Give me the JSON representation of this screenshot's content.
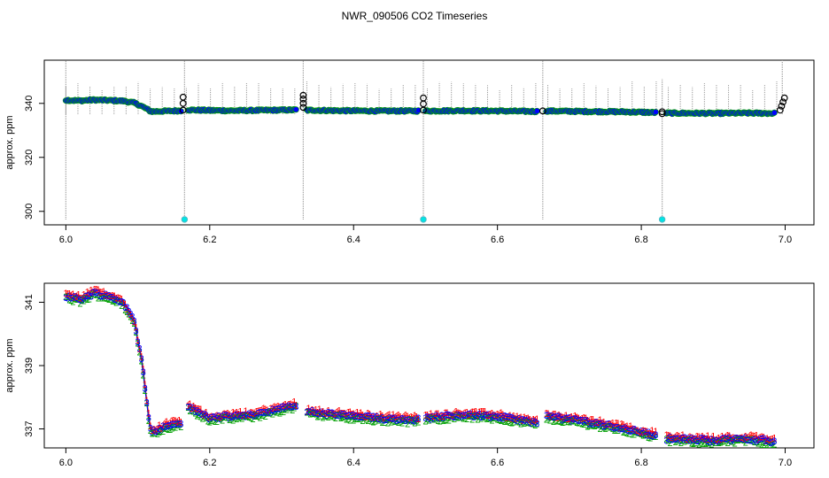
{
  "title": "NWR_090506  CO2 Timeseries",
  "chart_data": [
    {
      "type": "scatter",
      "panel": "top",
      "title": "NWR_090506  CO2 Timeseries",
      "xlabel": "",
      "ylabel": "approx. ppm",
      "xlim": [
        5.97,
        7.04
      ],
      "ylim": [
        295,
        356
      ],
      "xticks": [
        6.0,
        6.2,
        6.4,
        6.6,
        6.8,
        7.0
      ],
      "xtick_labels": [
        "6.0",
        "6.2",
        "6.4",
        "6.6",
        "6.8",
        "7.0"
      ],
      "yticks": [
        300,
        320,
        340
      ],
      "ytick_labels": [
        "300",
        "320",
        "340"
      ],
      "grid": false,
      "legend": "none",
      "colors": {
        "main": "#0000ff",
        "ref": "#000000",
        "cal": "#00e5e5",
        "range": "#9a9a9a",
        "green": "#00a000",
        "red": "#ff0000"
      },
      "series": [
        {
          "role": "main",
          "marker": "circle",
          "segments": [
            {
              "x": [
                6.0,
                6.02,
                6.04,
                6.06,
                6.08,
                6.095,
                6.105,
                6.112,
                6.116,
                6.12,
                6.16
              ],
              "y": [
                341.2,
                341.0,
                341.3,
                341.1,
                340.9,
                340.2,
                339.0,
                338.0,
                337.3,
                337.0,
                337.3
              ]
            },
            {
              "x": [
                6.17,
                6.2,
                6.23,
                6.26,
                6.29,
                6.32
              ],
              "y": [
                337.6,
                337.4,
                337.3,
                337.4,
                337.5,
                337.6
              ]
            },
            {
              "x": [
                6.335,
                6.38,
                6.43,
                6.49
              ],
              "y": [
                337.5,
                337.3,
                337.2,
                337.2
              ]
            },
            {
              "x": [
                6.5,
                6.55,
                6.6,
                6.655
              ],
              "y": [
                337.2,
                337.3,
                337.2,
                337.0
              ]
            },
            {
              "x": [
                6.668,
                6.72,
                6.77,
                6.82
              ],
              "y": [
                337.2,
                337.0,
                336.9,
                336.6
              ]
            },
            {
              "x": [
                6.835,
                6.9,
                6.95,
                6.985
              ],
              "y": [
                336.4,
                336.3,
                336.4,
                336.3
              ]
            }
          ]
        },
        {
          "role": "ref",
          "marker": "open-circle",
          "x": [
            6.163,
            6.163,
            6.163,
            6.33,
            6.33,
            6.33,
            6.33,
            6.497,
            6.497,
            6.497,
            6.663,
            6.829,
            6.829,
            6.993,
            6.995,
            6.997,
            6.999
          ],
          "y": [
            337.5,
            340.0,
            342.3,
            338.5,
            340.0,
            341.6,
            343.0,
            337.5,
            339.8,
            342.0,
            337.2,
            336.2,
            336.9,
            337.5,
            339.0,
            340.5,
            342.0
          ]
        },
        {
          "role": "cal",
          "marker": "circle",
          "x": [
            6.165,
            6.497,
            6.829
          ],
          "y": [
            297,
            297,
            297
          ]
        },
        {
          "role": "range",
          "marker": "vertical-line",
          "x_start": 6.0,
          "x_step": 0.01675,
          "count": 60,
          "lo": 336.0,
          "hi": 348.5,
          "tall": [
            {
              "x": 6.0,
              "lo": 297,
              "hi": 356
            },
            {
              "x": 6.165,
              "lo": 297,
              "hi": 356
            },
            {
              "x": 6.33,
              "lo": 297,
              "hi": 356
            },
            {
              "x": 6.497,
              "lo": 297,
              "hi": 356
            },
            {
              "x": 6.663,
              "lo": 297,
              "hi": 356
            },
            {
              "x": 6.829,
              "lo": 297,
              "hi": 349
            },
            {
              "x": 6.996,
              "lo": 336,
              "hi": 356
            }
          ]
        }
      ]
    },
    {
      "type": "scatter",
      "panel": "bottom",
      "title": "",
      "xlabel": "",
      "ylabel": "approx. ppm",
      "xlim": [
        5.97,
        7.04
      ],
      "ylim": [
        336.4,
        341.6
      ],
      "xticks": [
        6.0,
        6.2,
        6.4,
        6.6,
        6.8,
        7.0
      ],
      "xtick_labels": [
        "6.0",
        "6.2",
        "6.4",
        "6.6",
        "6.8",
        "7.0"
      ],
      "yticks": [
        337,
        339,
        341
      ],
      "ytick_labels": [
        "337",
        "339",
        "341"
      ],
      "grid": false,
      "legend": "none",
      "colors": {
        "main": "#0000ff",
        "green": "#00a000",
        "red": "#ff0000"
      },
      "marker_chars": {
        "blue": "3",
        "green": "2",
        "red": "1"
      },
      "series": [
        {
          "role": "main",
          "marker": "3",
          "segments": [
            {
              "x": [
                6.0,
                6.02,
                6.04,
                6.06,
                6.08,
                6.095,
                6.105,
                6.112,
                6.116,
                6.12,
                6.14,
                6.16
              ],
              "y": [
                341.2,
                341.1,
                341.3,
                341.2,
                341.0,
                340.4,
                339.2,
                338.0,
                337.2,
                336.9,
                337.1,
                337.2
              ]
            },
            {
              "x": [
                6.17,
                6.2,
                6.23,
                6.26,
                6.29,
                6.32
              ],
              "y": [
                337.7,
                337.35,
                337.4,
                337.45,
                337.6,
                337.75
              ]
            },
            {
              "x": [
                6.335,
                6.38,
                6.43,
                6.49
              ],
              "y": [
                337.55,
                337.45,
                337.35,
                337.3
              ]
            },
            {
              "x": [
                6.5,
                6.55,
                6.6,
                6.655
              ],
              "y": [
                337.35,
                337.45,
                337.4,
                337.2
              ]
            },
            {
              "x": [
                6.668,
                6.72,
                6.77,
                6.82
              ],
              "y": [
                337.4,
                337.25,
                337.05,
                336.8
              ]
            },
            {
              "x": [
                6.835,
                6.9,
                6.95,
                6.985
              ],
              "y": [
                336.7,
                336.65,
                336.7,
                336.6
              ]
            }
          ]
        }
      ]
    }
  ]
}
